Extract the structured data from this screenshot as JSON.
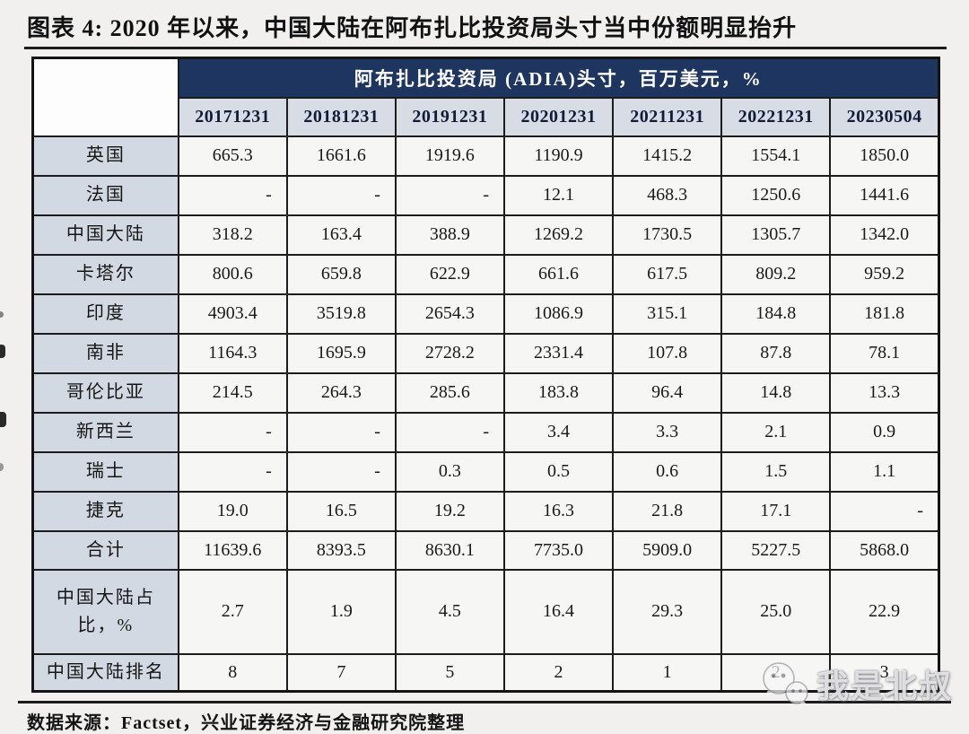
{
  "figure_title": "图表 4: 2020 年以来，中国大陆在阿布扎比投资局头寸当中份额明显抬升",
  "chart_data": {
    "type": "table",
    "title": "阿布扎比投资局 (ADIA)头寸，百万美元，%",
    "columns": [
      "20171231",
      "20181231",
      "20191231",
      "20201231",
      "20211231",
      "20221231",
      "20230504"
    ],
    "rows": [
      {
        "label": "英国",
        "values": [
          "665.3",
          "1661.6",
          "1919.6",
          "1190.9",
          "1415.2",
          "1554.1",
          "1850.0"
        ]
      },
      {
        "label": "法国",
        "values": [
          "-",
          "-",
          "-",
          "12.1",
          "468.3",
          "1250.6",
          "1441.6"
        ]
      },
      {
        "label": "中国大陆",
        "values": [
          "318.2",
          "163.4",
          "388.9",
          "1269.2",
          "1730.5",
          "1305.7",
          "1342.0"
        ]
      },
      {
        "label": "卡塔尔",
        "values": [
          "800.6",
          "659.8",
          "622.9",
          "661.6",
          "617.5",
          "809.2",
          "959.2"
        ]
      },
      {
        "label": "印度",
        "values": [
          "4903.4",
          "3519.8",
          "2654.3",
          "1086.9",
          "315.1",
          "184.8",
          "181.8"
        ]
      },
      {
        "label": "南非",
        "values": [
          "1164.3",
          "1695.9",
          "2728.2",
          "2331.4",
          "107.8",
          "87.8",
          "78.1"
        ]
      },
      {
        "label": "哥伦比亚",
        "values": [
          "214.5",
          "264.3",
          "285.6",
          "183.8",
          "96.4",
          "14.8",
          "13.3"
        ]
      },
      {
        "label": "新西兰",
        "values": [
          "-",
          "-",
          "-",
          "3.4",
          "3.3",
          "2.1",
          "0.9"
        ]
      },
      {
        "label": "瑞士",
        "values": [
          "-",
          "-",
          "0.3",
          "0.5",
          "0.6",
          "1.5",
          "1.1"
        ]
      },
      {
        "label": "捷克",
        "values": [
          "19.0",
          "16.5",
          "19.2",
          "16.3",
          "21.8",
          "17.1",
          "-"
        ]
      },
      {
        "label": "合计",
        "values": [
          "11639.6",
          "8393.5",
          "8630.1",
          "7735.0",
          "5909.0",
          "5227.5",
          "5868.0"
        ],
        "kind": "total"
      },
      {
        "label": "中国大陆占比，%",
        "values": [
          "2.7",
          "1.9",
          "4.5",
          "16.4",
          "29.3",
          "25.0",
          "22.9"
        ],
        "kind": "tall"
      },
      {
        "label": "中国大陆排名",
        "values": [
          "8",
          "7",
          "5",
          "2",
          "1",
          "2",
          "3"
        ],
        "kind": "last"
      }
    ]
  },
  "source_note": "数据来源：Factset，兴业证券经济与金融研究院整理",
  "watermark": {
    "text": "我是北叔",
    "icon": "wechat-chat-bubbles-icon"
  },
  "colors": {
    "band_bg": "#1e355f",
    "band_text": "#ffffff",
    "column_header_bg": "#d8dce5",
    "column_header_text": "#101c38",
    "row_label_bg": "#d3d9e2",
    "data_cell_bg": "#f6f6f5",
    "border": "#1c1c1c",
    "page_bg": "#f1f0ee"
  }
}
